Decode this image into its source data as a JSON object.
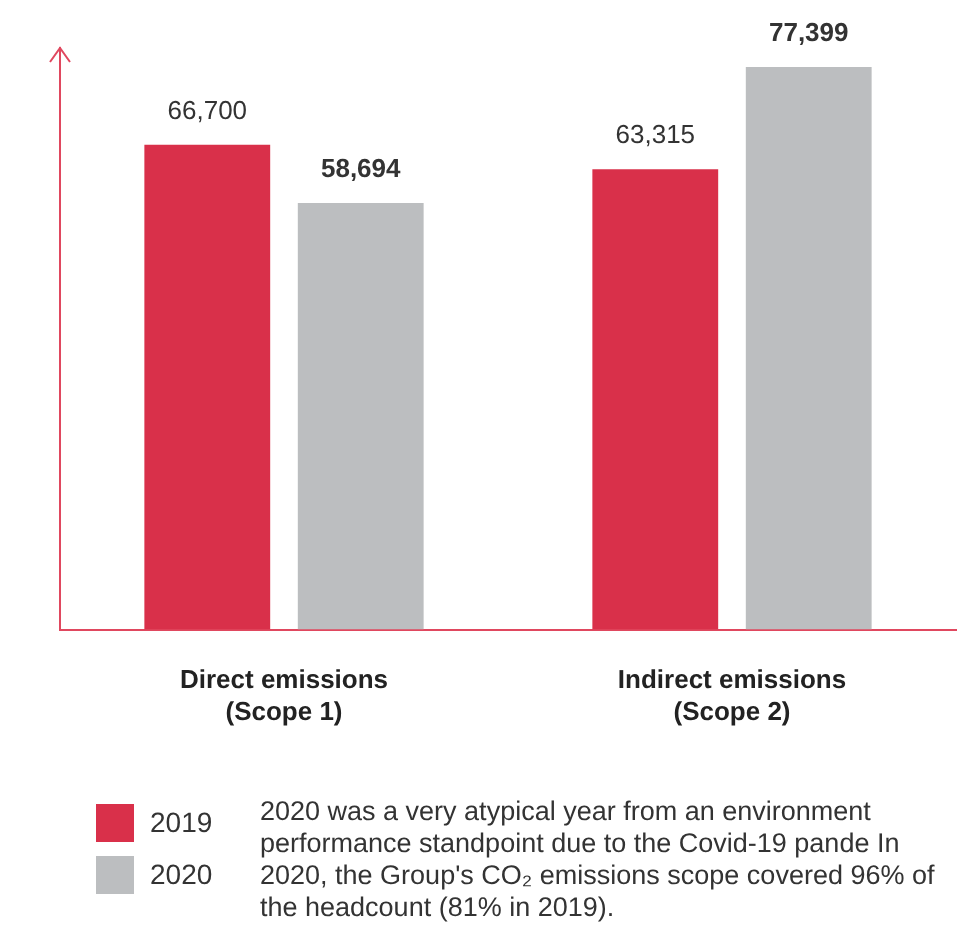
{
  "chart_data": {
    "type": "bar",
    "categories": [
      "Direct emissions\n(Scope 1)",
      "Indirect emissions\n(Scope 2)"
    ],
    "series": [
      {
        "name": "2019",
        "color": "#d9304a",
        "values": [
          66700,
          63315
        ],
        "value_labels": [
          "66,700",
          "63,315"
        ]
      },
      {
        "name": "2020",
        "color": "#bcbec0",
        "values": [
          58694,
          77399
        ],
        "value_labels": [
          "58,694",
          "77,399"
        ]
      }
    ],
    "tick_labels": "x",
    "grid": false,
    "legend": "bottom left",
    "annotations": [
      "2020 was a very atypical year from an environment performance standpoint due to the Covid-19 pande In 2020, the Group's CO₂ emissions scope covered 96% of the headcount (81% in 2019)."
    ]
  }
}
